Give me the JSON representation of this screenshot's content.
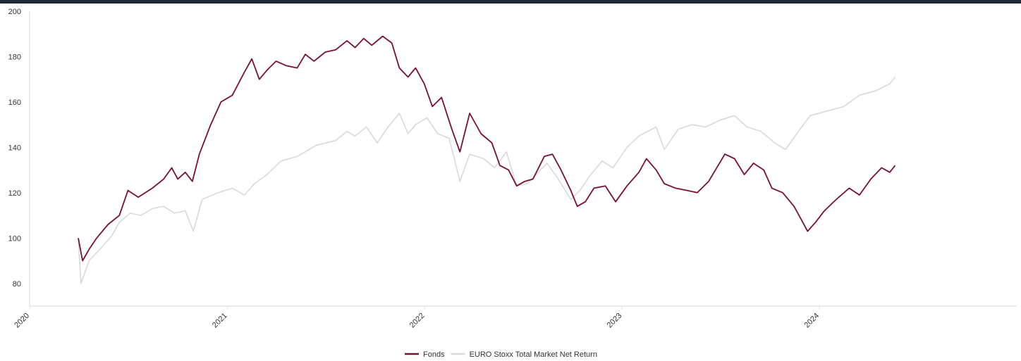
{
  "chart_data": {
    "type": "line",
    "title": "",
    "xlabel": "",
    "ylabel": "",
    "x_ticks": [
      "2020",
      "2021",
      "2022",
      "2023",
      "2024"
    ],
    "y_ticks": [
      80,
      100,
      120,
      140,
      160,
      180,
      200
    ],
    "xlim": [
      "2020-01-01",
      "2024-12-31"
    ],
    "ylim": [
      70,
      200
    ],
    "grid": false,
    "legend_position": "bottom",
    "series": [
      {
        "name": "Fonds",
        "color": "#7a0f2e",
        "points": [
          [
            "2020-03-31",
            100
          ],
          [
            "2020-04-08",
            90
          ],
          [
            "2020-04-20",
            95
          ],
          [
            "2020-05-04",
            100
          ],
          [
            "2020-05-25",
            106
          ],
          [
            "2020-06-15",
            110
          ],
          [
            "2020-07-01",
            121
          ],
          [
            "2020-07-20",
            118
          ],
          [
            "2020-08-15",
            122
          ],
          [
            "2020-09-05",
            126
          ],
          [
            "2020-09-20",
            131
          ],
          [
            "2020-10-01",
            126
          ],
          [
            "2020-10-15",
            129
          ],
          [
            "2020-10-28",
            125
          ],
          [
            "2020-11-10",
            137
          ],
          [
            "2020-12-01",
            150
          ],
          [
            "2020-12-20",
            160
          ],
          [
            "2021-01-10",
            163
          ],
          [
            "2021-02-01",
            173
          ],
          [
            "2021-02-15",
            179
          ],
          [
            "2021-03-01",
            170
          ],
          [
            "2021-03-15",
            174
          ],
          [
            "2021-04-01",
            178
          ],
          [
            "2021-04-20",
            176
          ],
          [
            "2021-05-10",
            175
          ],
          [
            "2021-05-25",
            181
          ],
          [
            "2021-06-10",
            178
          ],
          [
            "2021-07-01",
            182
          ],
          [
            "2021-07-20",
            183
          ],
          [
            "2021-08-10",
            187
          ],
          [
            "2021-08-25",
            184
          ],
          [
            "2021-09-10",
            188
          ],
          [
            "2021-09-25",
            185
          ],
          [
            "2021-10-15",
            189
          ],
          [
            "2021-11-01",
            186
          ],
          [
            "2021-11-15",
            175
          ],
          [
            "2021-12-01",
            171
          ],
          [
            "2021-12-15",
            175
          ],
          [
            "2021-12-31",
            168
          ],
          [
            "2022-01-15",
            158
          ],
          [
            "2022-02-01",
            162
          ],
          [
            "2022-02-20",
            148
          ],
          [
            "2022-03-07",
            138
          ],
          [
            "2022-03-25",
            155
          ],
          [
            "2022-04-15",
            146
          ],
          [
            "2022-05-05",
            142
          ],
          [
            "2022-05-20",
            132
          ],
          [
            "2022-06-05",
            130
          ],
          [
            "2022-06-20",
            123
          ],
          [
            "2022-07-05",
            125
          ],
          [
            "2022-07-20",
            126
          ],
          [
            "2022-08-10",
            136
          ],
          [
            "2022-08-25",
            137
          ],
          [
            "2022-09-10",
            130
          ],
          [
            "2022-09-28",
            121
          ],
          [
            "2022-10-10",
            114
          ],
          [
            "2022-10-25",
            116
          ],
          [
            "2022-11-10",
            122
          ],
          [
            "2022-12-01",
            123
          ],
          [
            "2022-12-20",
            116
          ],
          [
            "2023-01-10",
            123
          ],
          [
            "2023-02-01",
            129
          ],
          [
            "2023-02-15",
            135
          ],
          [
            "2023-03-05",
            130
          ],
          [
            "2023-03-20",
            124
          ],
          [
            "2023-04-10",
            122
          ],
          [
            "2023-05-01",
            121
          ],
          [
            "2023-05-20",
            120
          ],
          [
            "2023-06-10",
            125
          ],
          [
            "2023-06-25",
            131
          ],
          [
            "2023-07-10",
            137
          ],
          [
            "2023-07-28",
            135
          ],
          [
            "2023-08-15",
            128
          ],
          [
            "2023-09-01",
            133
          ],
          [
            "2023-09-20",
            130
          ],
          [
            "2023-10-05",
            122
          ],
          [
            "2023-10-25",
            120
          ],
          [
            "2023-11-15",
            114
          ],
          [
            "2023-12-01",
            107
          ],
          [
            "2023-12-10",
            103
          ],
          [
            "2023-12-25",
            107
          ],
          [
            "2024-01-10",
            112
          ],
          [
            "2024-02-01",
            117
          ],
          [
            "2024-02-25",
            122
          ],
          [
            "2024-03-15",
            119
          ],
          [
            "2024-04-05",
            126
          ],
          [
            "2024-04-25",
            131
          ],
          [
            "2024-05-10",
            129
          ],
          [
            "2024-05-20",
            132
          ]
        ]
      },
      {
        "name": "EURO Stoxx Total Market Net Return",
        "color": "#d9d9d9",
        "points": [
          [
            "2020-03-31",
            100
          ],
          [
            "2020-04-05",
            80
          ],
          [
            "2020-04-20",
            90
          ],
          [
            "2020-05-10",
            95
          ],
          [
            "2020-06-01",
            101
          ],
          [
            "2020-06-15",
            107
          ],
          [
            "2020-07-05",
            111
          ],
          [
            "2020-07-25",
            110
          ],
          [
            "2020-08-15",
            113
          ],
          [
            "2020-09-05",
            114
          ],
          [
            "2020-09-25",
            111
          ],
          [
            "2020-10-15",
            112
          ],
          [
            "2020-10-30",
            103
          ],
          [
            "2020-11-15",
            117
          ],
          [
            "2020-12-15",
            120
          ],
          [
            "2021-01-10",
            122
          ],
          [
            "2021-02-01",
            119
          ],
          [
            "2021-02-20",
            124
          ],
          [
            "2021-03-15",
            128
          ],
          [
            "2021-04-10",
            134
          ],
          [
            "2021-05-10",
            136
          ],
          [
            "2021-06-15",
            141
          ],
          [
            "2021-07-20",
            143
          ],
          [
            "2021-08-10",
            147
          ],
          [
            "2021-08-25",
            145
          ],
          [
            "2021-09-15",
            149
          ],
          [
            "2021-10-05",
            142
          ],
          [
            "2021-10-25",
            149
          ],
          [
            "2021-11-15",
            155
          ],
          [
            "2021-12-01",
            146
          ],
          [
            "2021-12-15",
            150
          ],
          [
            "2022-01-05",
            153
          ],
          [
            "2022-01-25",
            146
          ],
          [
            "2022-02-15",
            144
          ],
          [
            "2022-03-07",
            125
          ],
          [
            "2022-03-25",
            137
          ],
          [
            "2022-04-20",
            135
          ],
          [
            "2022-05-10",
            131
          ],
          [
            "2022-06-01",
            138
          ],
          [
            "2022-06-20",
            123
          ],
          [
            "2022-07-10",
            124
          ],
          [
            "2022-08-15",
            133
          ],
          [
            "2022-09-05",
            126
          ],
          [
            "2022-09-28",
            117
          ],
          [
            "2022-10-15",
            121
          ],
          [
            "2022-11-01",
            127
          ],
          [
            "2022-11-25",
            134
          ],
          [
            "2022-12-15",
            131
          ],
          [
            "2023-01-10",
            140
          ],
          [
            "2023-02-01",
            145
          ],
          [
            "2023-03-05",
            149
          ],
          [
            "2023-03-20",
            139
          ],
          [
            "2023-04-15",
            148
          ],
          [
            "2023-05-10",
            150
          ],
          [
            "2023-06-05",
            149
          ],
          [
            "2023-07-01",
            152
          ],
          [
            "2023-07-28",
            154
          ],
          [
            "2023-08-20",
            149
          ],
          [
            "2023-09-15",
            147
          ],
          [
            "2023-10-10",
            142
          ],
          [
            "2023-10-30",
            139
          ],
          [
            "2023-11-20",
            146
          ],
          [
            "2023-12-15",
            154
          ],
          [
            "2024-01-15",
            156
          ],
          [
            "2024-02-15",
            158
          ],
          [
            "2024-03-15",
            163
          ],
          [
            "2024-04-15",
            165
          ],
          [
            "2024-05-10",
            168
          ],
          [
            "2024-05-20",
            171
          ]
        ]
      }
    ]
  }
}
